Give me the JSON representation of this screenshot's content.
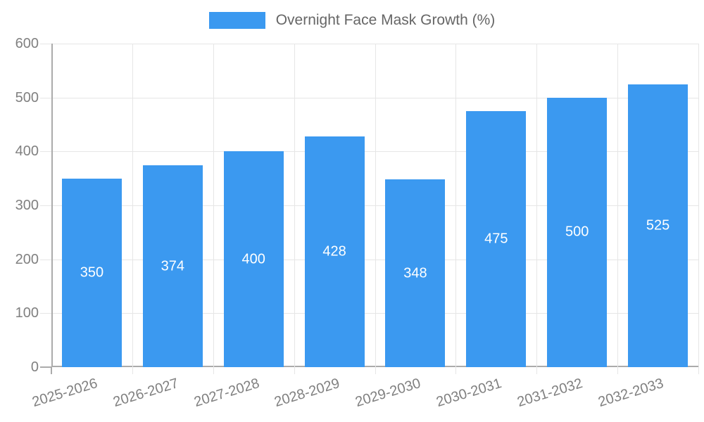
{
  "legend": {
    "label": "Overnight Face Mask Growth (%)",
    "position": "top"
  },
  "chart_data": {
    "type": "bar",
    "title": "Overnight Face Mask Growth (%)",
    "series_name": "Overnight Face Mask Growth (%)",
    "categories": [
      "2025-2026",
      "2026-2027",
      "2027-2028",
      "2028-2029",
      "2029-2030",
      "2030-2031",
      "2031-2032",
      "2032-2033"
    ],
    "values": [
      350,
      374,
      400,
      428,
      348,
      475,
      500,
      525
    ],
    "value_labels": [
      "350",
      "374",
      "400",
      "428",
      "348",
      "475",
      "500",
      "525"
    ],
    "xlabel": "",
    "ylabel": "",
    "ylim": [
      0,
      600
    ],
    "yticks": [
      0,
      100,
      200,
      300,
      400,
      500,
      600
    ],
    "grid": true,
    "legend_position": "top",
    "x_tick_rotation_deg": -17
  },
  "colors": {
    "bar": "#3b99f0",
    "grid": "#e6e6e6",
    "axis_line": "#ababab",
    "tick_label": "#808080",
    "legend_text": "#666666",
    "value_label": "#ffffff",
    "background": "#ffffff"
  }
}
